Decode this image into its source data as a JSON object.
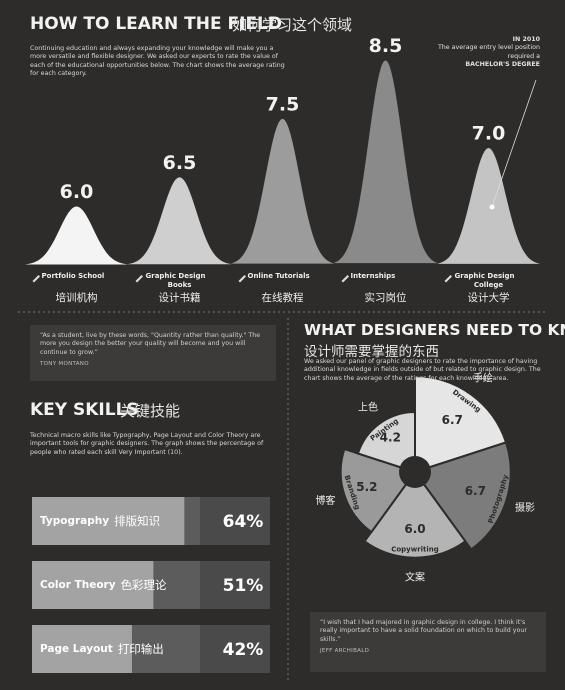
{
  "chart_data": [
    {
      "type": "peak",
      "title": "HOW TO LEARN THE FIELD",
      "subtitle": "如何学习这个领域",
      "description": "Continuing education and always expanding your knowledge will make you a more versatile and flexible designer. We asked our experts to rate the value of each of the educational opportunities below. The chart shows the average rating for each category.",
      "categories": [
        "Portfolio School",
        "Graphic Design Books",
        "Online Tutorials",
        "Internships",
        "Graphic Design College"
      ],
      "category_labels_zh": [
        "培训机构",
        "设计书籍",
        "在线教程",
        "实习岗位",
        "设计大学"
      ],
      "values": [
        6.0,
        6.5,
        7.5,
        8.5,
        7.0
      ],
      "value_labels": [
        "6.0",
        "6.5",
        "7.5",
        "8.5",
        "7.0"
      ],
      "colors": [
        "#f4f4f4",
        "#cfcfcf",
        "#9c9c9c",
        "#8a8a8a",
        "#c4c4c4"
      ],
      "ylim": [
        5,
        9
      ],
      "annotation": {
        "year": "IN 2010",
        "text": "The average entry level position required a",
        "highlight": "BACHELOR'S DEGREE"
      }
    },
    {
      "type": "hbar",
      "title": "KEY SKILLS",
      "subtitle": "关键技能",
      "description": "Technical macro skills like Typography, Page Layout and Color Theory are important tools for graphic designers. The graph shows the percentage of people who rated each skill Very Important (10).",
      "categories": [
        "Typography",
        "Color Theory",
        "Page Layout"
      ],
      "category_labels_zh": [
        "排版知识",
        "色彩理论",
        "打印输出"
      ],
      "values": [
        64,
        51,
        42
      ],
      "value_labels": [
        "64%",
        "51%",
        "42%"
      ],
      "color": "#a3a3a3",
      "track_color": "#5c5c5c",
      "xlim": [
        0,
        100
      ]
    },
    {
      "type": "polar",
      "title": "WHAT DESIGNERS NEED TO KNOW",
      "subtitle": "设计师需要掌握的东西",
      "description": "We asked our panel of graphic designers to rate the importance of having additional knowledge in fields outside of but related to graphic design. The chart shows the average of the ratings for each knowledge area.",
      "categories": [
        "Drawing",
        "Photography",
        "Copywriting",
        "Branding",
        "Painting"
      ],
      "category_labels_zh": [
        "手绘",
        "摄影",
        "文案",
        "博客",
        "上色"
      ],
      "values": [
        6.7,
        6.7,
        6.0,
        5.2,
        4.2
      ],
      "value_labels": [
        "6.7",
        "6.7",
        "6.0",
        "5.2",
        "4.2"
      ],
      "colors": [
        "#e6e6e6",
        "#7c7c7c",
        "#b4b4b4",
        "#9a9a9a",
        "#d6d6d6"
      ],
      "rlim": [
        0,
        7
      ]
    }
  ],
  "quotes": [
    {
      "text": "“As a student, live by these words, \"Quantity rather than quality.\" The more you design the better your quality will become and you will continue to grow.”",
      "author": "TONY MONTANO"
    },
    {
      "text": "“I wish that I had majored in graphic design in college. I think it's really important to have a solid foundation on which to build your skills.”",
      "author": "JEFF ARCHIBALD"
    }
  ]
}
